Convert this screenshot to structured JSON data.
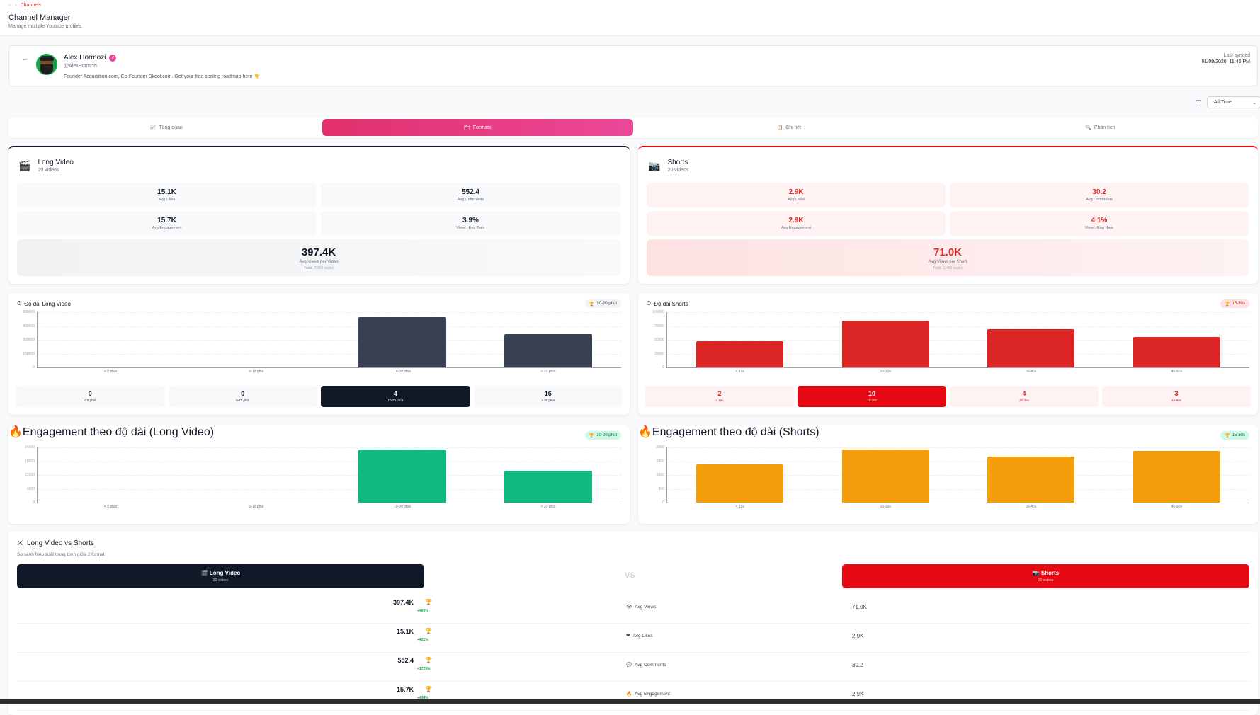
{
  "breadcrumb": {
    "home_icon": "home-icon",
    "current": "Channels"
  },
  "header": {
    "title": "Channel Manager",
    "subtitle": "Manage multiple Youtube profiles"
  },
  "profile": {
    "name": "Alex Hormozi",
    "handle": "@AlexHormozi",
    "description": "Founder Acquisition.com, Co-Founder Skool.com. Get your free scaling roadmap here 👇",
    "last_synced_label": "Last synced",
    "last_synced_value": "01/09/2026, 11:46 PM"
  },
  "filter": {
    "time_range": "All Time"
  },
  "tabs": [
    {
      "icon": "📈",
      "label": "Tổng quan"
    },
    {
      "icon": "🗂",
      "label": "Formats",
      "active": true
    },
    {
      "icon": "📋",
      "label": "Chi tiết"
    },
    {
      "icon": "🔍",
      "label": "Phân tích"
    }
  ],
  "long_video": {
    "icon": "🎬",
    "title": "Long Video",
    "count": "20 videos",
    "avg_likes": "15.1K",
    "avg_likes_label": "Avg Likes",
    "avg_comments": "552.4",
    "avg_comments_label": "Avg Comments",
    "avg_engagement": "15.7K",
    "avg_engagement_label": "Avg Engagement",
    "eng_rate": "3.9%",
    "eng_rate_label": "View→Eng Rate",
    "avg_views": "397.4K",
    "avg_views_label": "Avg Views per Video",
    "total": "Total: 7.9M views",
    "accent": "#111827"
  },
  "shorts": {
    "icon": "📷",
    "title": "Shorts",
    "count": "20 videos",
    "avg_likes": "2.9K",
    "avg_likes_label": "Avg Likes",
    "avg_comments": "30.2",
    "avg_comments_label": "Avg Comments",
    "avg_engagement": "2.9K",
    "avg_engagement_label": "Avg Engagement",
    "eng_rate": "4.1%",
    "eng_rate_label": "View→Eng Rate",
    "avg_views": "71.0K",
    "avg_views_label": "Avg Views per Short",
    "total": "Total: 1.4M views",
    "accent": "#e50914"
  },
  "chart_data": [
    {
      "type": "bar",
      "title": "Độ dài Long Video",
      "badge": "10-20 phút",
      "categories": [
        "< 5 phút",
        "5-10 phút",
        "10-20 phút",
        "> 20 phút"
      ],
      "values": [
        0,
        0,
        547000,
        365000
      ],
      "counts": [
        0,
        0,
        4,
        16
      ],
      "ylim": [
        0,
        600000
      ],
      "yticks": [
        0,
        150000,
        300000,
        450000,
        600000
      ],
      "color": "#374151"
    },
    {
      "type": "bar",
      "title": "Độ dài Shorts",
      "badge": "15-30s",
      "categories": [
        "< 15s",
        "15-30s",
        "30-45s",
        "45-60s"
      ],
      "values": [
        47000,
        84000,
        69000,
        55000
      ],
      "counts": [
        2,
        10,
        4,
        3
      ],
      "ylim": [
        0,
        100000
      ],
      "yticks": [
        0,
        25000,
        50000,
        75000,
        100000
      ],
      "color": "#dc2626"
    },
    {
      "type": "bar",
      "title": "Engagement theo độ dài (Long Video)",
      "badge": "10-20 phút",
      "categories": [
        "< 5 phút",
        "5-10 phút",
        "10-20 phút",
        "> 20 phút"
      ],
      "values": [
        0,
        0,
        23000,
        13800
      ],
      "ylim": [
        0,
        24000
      ],
      "yticks": [
        0,
        6000,
        12000,
        18000,
        24000
      ],
      "color": "#10b981"
    },
    {
      "type": "bar",
      "title": "Engagement theo độ dài (Shorts)",
      "badge": "15-30s",
      "categories": [
        "< 15s",
        "15-30s",
        "30-45s",
        "45-60s"
      ],
      "values": [
        2210,
        3070,
        2670,
        2990
      ],
      "ylim": [
        0,
        3200
      ],
      "yticks": [
        0,
        800,
        1600,
        2400,
        3200
      ],
      "color": "#f59e0b"
    }
  ],
  "comparison": {
    "title": "Long Video vs Shorts",
    "subtitle": "So sánh hiệu suất trung bình giữa 2 format",
    "vs": "VS",
    "left": {
      "label": "🎬 Long Video",
      "count": "20 videos"
    },
    "right": {
      "label": "📷 Shorts",
      "count": "20 videos"
    },
    "rows": [
      {
        "icon": "👁",
        "metric": "Avg Views",
        "long": "397.4K",
        "diff": "+460%",
        "shorts": "71.0K"
      },
      {
        "icon": "❤",
        "metric": "Avg Likes",
        "long": "15.1K",
        "diff": "+421%",
        "shorts": "2.9K"
      },
      {
        "icon": "💬",
        "metric": "Avg Comments",
        "long": "552.4",
        "diff": "+1729%",
        "shorts": "30.2"
      },
      {
        "icon": "🔥",
        "metric": "Avg Engagement",
        "long": "15.7K",
        "diff": "+434%",
        "shorts": "2.9K"
      }
    ]
  }
}
